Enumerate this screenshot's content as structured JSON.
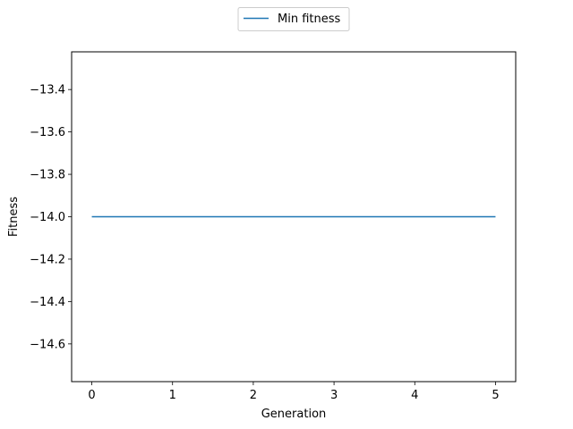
{
  "chart_data": {
    "type": "line",
    "title": "",
    "xlabel": "Generation",
    "ylabel": "Fitness",
    "xlim": [
      -0.25,
      5.25
    ],
    "ylim": [
      -14.7778,
      -13.2222
    ],
    "xticks": [
      0,
      1,
      2,
      3,
      4,
      5
    ],
    "xtick_labels": [
      "0",
      "1",
      "2",
      "3",
      "4",
      "5"
    ],
    "yticks": [
      -13.4,
      -13.6,
      -13.8,
      -14.0,
      -14.2,
      -14.4,
      -14.6
    ],
    "ytick_labels": [
      "−13.4",
      "−13.6",
      "−13.8",
      "−14.0",
      "−14.2",
      "−14.4",
      "−14.6"
    ],
    "grid": false,
    "legend_position": "top-center-outside",
    "series": [
      {
        "name": "Min fitness",
        "color": "#1f77b4",
        "x": [
          0,
          1,
          2,
          3,
          4,
          5
        ],
        "y": [
          -14.0,
          -14.0,
          -14.0,
          -14.0,
          -14.0,
          -14.0
        ]
      }
    ]
  }
}
